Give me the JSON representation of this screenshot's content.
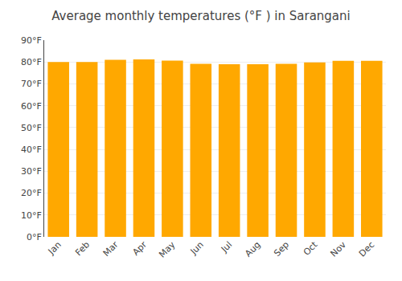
{
  "chart_data": {
    "type": "bar",
    "title": "Average monthly temperatures (°F ) in Sarangani",
    "categories": [
      "Jan",
      "Feb",
      "Mar",
      "Apr",
      "May",
      "Jun",
      "Jul",
      "Aug",
      "Sep",
      "Oct",
      "Nov",
      "Dec"
    ],
    "values": [
      80.0,
      80.0,
      81.0,
      81.2,
      80.6,
      79.2,
      79.0,
      79.0,
      79.2,
      79.8,
      80.5,
      80.5
    ],
    "color": "#FFA800",
    "ylim": [
      0,
      90
    ],
    "yticks": [
      {
        "value": 0,
        "label": "0°F"
      },
      {
        "value": 10,
        "label": "10°F"
      },
      {
        "value": 20,
        "label": "20°F"
      },
      {
        "value": 30,
        "label": "30°F"
      },
      {
        "value": 40,
        "label": "40°F"
      },
      {
        "value": 50,
        "label": "50°F"
      },
      {
        "value": 60,
        "label": "60°F"
      },
      {
        "value": 70,
        "label": "70°F"
      },
      {
        "value": 80,
        "label": "80°F"
      },
      {
        "value": 90,
        "label": "90°F"
      }
    ],
    "grid": true
  }
}
